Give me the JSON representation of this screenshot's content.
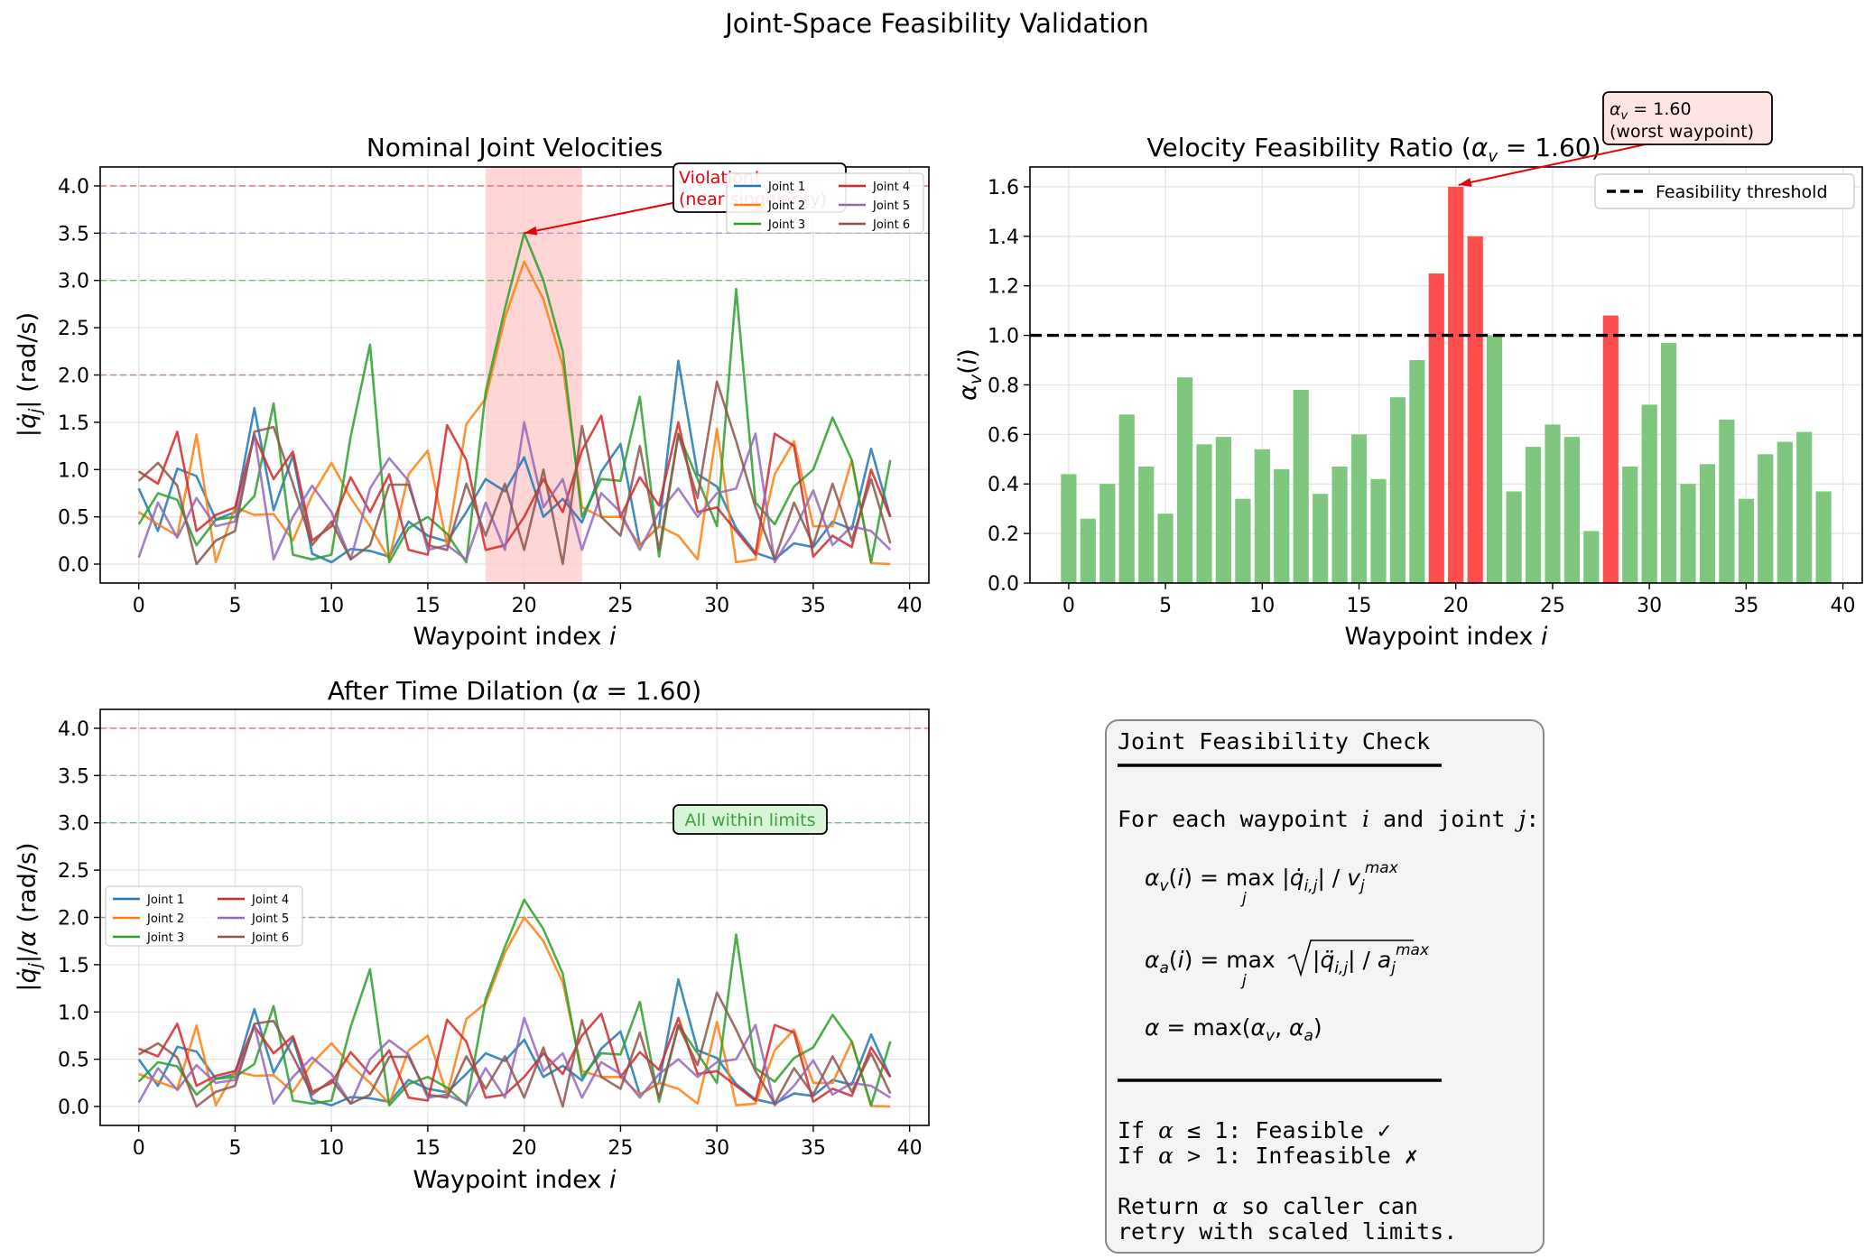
{
  "figure_title": "Joint-Space Feasibility Validation",
  "colors": {
    "joint1": "#1f77b4",
    "joint2": "#ff7f0e",
    "joint3": "#2ca02c",
    "joint4": "#d62728",
    "joint5": "#9467bd",
    "joint6": "#8c564b",
    "bar_ok": "#7fc67f",
    "bar_bad": "#ff4444",
    "violation_band": "#ffcccc",
    "annotation_red": "#e8000b",
    "ok_green": "#3aa33a"
  },
  "chart_data": [
    {
      "id": "nominal",
      "type": "line",
      "title": "Nominal Joint Velocities",
      "xlabel": "Waypoint index i",
      "ylabel": "|q̇j| (rad/s)",
      "xlim": [
        -2,
        41
      ],
      "ylim": [
        -0.2,
        4.2
      ],
      "xticks": [
        0,
        5,
        10,
        15,
        20,
        25,
        30,
        35,
        40
      ],
      "yticks": [
        0.0,
        0.5,
        1.0,
        1.5,
        2.0,
        2.5,
        3.0,
        3.5,
        4.0
      ],
      "grid": true,
      "legend_position": "upper-right",
      "limit_lines": [
        {
          "y": 4.0,
          "color": "#d62728"
        },
        {
          "y": 3.5,
          "color": "#9467bd"
        },
        {
          "y": 3.0,
          "color": "#2ca02c"
        },
        {
          "y": 2.0,
          "color": "#8c564b"
        }
      ],
      "shaded_region": {
        "x0": 18,
        "x1": 23
      },
      "annotation": {
        "text_line1": "Violation!",
        "text_line2": "(near singularity)",
        "point_x": 20,
        "point_y": 3.5
      },
      "series": [
        {
          "name": "Joint 1",
          "values": [
            0.8,
            0.35,
            1.01,
            0.93,
            0.47,
            0.55,
            1.65,
            0.57,
            1.15,
            0.11,
            0.02,
            0.16,
            0.14,
            0.08,
            0.45,
            0.3,
            0.24,
            0.55,
            0.9,
            0.77,
            1.13,
            0.5,
            0.69,
            0.44,
            0.98,
            1.27,
            0.2,
            0.4,
            2.15,
            0.95,
            0.82,
            0.38,
            0.12,
            0.05,
            0.22,
            0.18,
            0.45,
            0.37,
            1.22,
            0.5
          ]
        },
        {
          "name": "Joint 2",
          "values": [
            0.55,
            0.42,
            0.3,
            1.37,
            0.02,
            0.6,
            0.52,
            0.53,
            0.25,
            0.73,
            1.07,
            0.7,
            0.4,
            0.05,
            0.95,
            1.2,
            0.2,
            1.48,
            1.75,
            2.6,
            3.2,
            2.8,
            2.1,
            0.6,
            0.5,
            0.5,
            0.2,
            0.4,
            0.3,
            0.05,
            1.43,
            0.02,
            0.05,
            0.95,
            1.3,
            0.4,
            0.4,
            1.1,
            0.01,
            0.0
          ]
        },
        {
          "name": "Joint 3",
          "values": [
            0.42,
            0.75,
            0.68,
            0.2,
            0.47,
            0.5,
            0.72,
            1.7,
            0.1,
            0.05,
            0.1,
            1.35,
            2.32,
            0.02,
            0.38,
            0.5,
            0.32,
            0.02,
            1.82,
            2.7,
            3.5,
            3.0,
            2.25,
            0.5,
            0.9,
            0.88,
            1.77,
            0.08,
            1.38,
            0.9,
            0.4,
            2.91,
            0.65,
            0.42,
            0.82,
            1.0,
            1.55,
            1.1,
            0.02,
            1.1
          ]
        },
        {
          "name": "Joint 4",
          "values": [
            0.98,
            0.85,
            1.4,
            0.35,
            0.52,
            0.6,
            1.36,
            0.9,
            1.19,
            0.25,
            0.4,
            0.92,
            0.55,
            0.95,
            0.15,
            0.1,
            1.47,
            1.1,
            0.15,
            0.2,
            0.5,
            0.9,
            0.55,
            1.2,
            1.57,
            0.5,
            0.92,
            0.62,
            1.5,
            0.55,
            0.6,
            0.35,
            0.1,
            1.38,
            1.25,
            0.08,
            0.3,
            0.18,
            1.0,
            0.5
          ]
        },
        {
          "name": "Joint 5",
          "values": [
            0.07,
            0.65,
            0.28,
            0.7,
            0.4,
            0.45,
            1.37,
            0.05,
            0.5,
            0.83,
            0.55,
            0.05,
            0.8,
            1.12,
            0.88,
            0.15,
            0.2,
            0.05,
            0.65,
            0.15,
            1.5,
            0.6,
            0.9,
            0.15,
            0.75,
            0.55,
            0.15,
            0.55,
            0.8,
            0.5,
            0.75,
            0.8,
            1.38,
            0.02,
            0.35,
            0.78,
            0.2,
            0.4,
            0.35,
            0.15
          ]
        },
        {
          "name": "Joint 6",
          "values": [
            0.88,
            1.07,
            0.83,
            0.0,
            0.25,
            0.35,
            1.4,
            1.45,
            0.85,
            0.2,
            0.45,
            0.05,
            0.2,
            0.84,
            0.84,
            0.2,
            0.15,
            0.85,
            0.3,
            0.85,
            0.15,
            1.0,
            0.0,
            1.46,
            0.5,
            0.3,
            1.25,
            0.15,
            1.37,
            0.7,
            1.93,
            1.3,
            0.6,
            0.05,
            0.65,
            0.2,
            0.85,
            0.25,
            0.9,
            0.22
          ]
        }
      ]
    },
    {
      "id": "ratio",
      "type": "bar",
      "title": "Velocity Feasibility Ratio (αv = 1.60)",
      "xlabel": "Waypoint index i",
      "ylabel": "αv(i)",
      "xlim": [
        -2,
        41
      ],
      "ylim": [
        0,
        1.68
      ],
      "xticks": [
        0,
        5,
        10,
        15,
        20,
        25,
        30,
        35,
        40
      ],
      "yticks": [
        0.0,
        0.2,
        0.4,
        0.6,
        0.8,
        1.0,
        1.2,
        1.4,
        1.6
      ],
      "grid": true,
      "threshold": {
        "y": 1.0,
        "label": "Feasibility threshold"
      },
      "legend_position": "upper-right",
      "annotation": {
        "text_line1": "αv = 1.60",
        "text_line2": "(worst waypoint)",
        "point_x": 20,
        "point_y": 1.6
      },
      "categories": [
        0,
        1,
        2,
        3,
        4,
        5,
        6,
        7,
        8,
        9,
        10,
        11,
        12,
        13,
        14,
        15,
        16,
        17,
        18,
        19,
        20,
        21,
        22,
        23,
        24,
        25,
        26,
        27,
        28,
        29,
        30,
        31,
        32,
        33,
        34,
        35,
        36,
        37,
        38,
        39
      ],
      "values": [
        0.44,
        0.26,
        0.4,
        0.68,
        0.47,
        0.28,
        0.83,
        0.56,
        0.59,
        0.34,
        0.54,
        0.46,
        0.78,
        0.36,
        0.47,
        0.6,
        0.42,
        0.75,
        0.9,
        1.25,
        1.6,
        1.4,
        1.0,
        0.37,
        0.55,
        0.64,
        0.59,
        0.21,
        1.08,
        0.47,
        0.72,
        0.97,
        0.4,
        0.48,
        0.66,
        0.34,
        0.52,
        0.57,
        0.61,
        0.37
      ]
    },
    {
      "id": "dilated",
      "type": "line",
      "title": "After Time Dilation (α = 1.60)",
      "xlabel": "Waypoint index i",
      "ylabel": "|q̇j|/α (rad/s)",
      "xlim": [
        -2,
        41
      ],
      "ylim": [
        -0.2,
        4.2
      ],
      "xticks": [
        0,
        5,
        10,
        15,
        20,
        25,
        30,
        35,
        40
      ],
      "yticks": [
        0.0,
        0.5,
        1.0,
        1.5,
        2.0,
        2.5,
        3.0,
        3.5,
        4.0
      ],
      "grid": true,
      "legend_position": "center-left",
      "limit_lines": [
        {
          "y": 4.0,
          "color": "#d62728"
        },
        {
          "y": 3.5,
          "color": "#9467bd"
        },
        {
          "y": 3.0,
          "color": "#2ca02c"
        },
        {
          "y": 2.0,
          "color": "#8c564b"
        }
      ],
      "annotation": {
        "text": "All within limits"
      },
      "scale_divisor": 1.6
    }
  ],
  "panel": {
    "title": "Joint Feasibility Check",
    "intro": "For each waypoint i and joint j:",
    "eq_v": "αv(i) = max_j |q̇i,j| / vj^max",
    "eq_a": "αa(i) = max_j √(|q̈i,j| / aj^max)",
    "eq_alpha": "α = max(αv, αa)",
    "cond1": "If α ≤ 1:  Feasible ✓",
    "cond2": "If α > 1:  Infeasible ✗",
    "ret1": "Return α so caller can",
    "ret2": "retry with scaled limits."
  }
}
